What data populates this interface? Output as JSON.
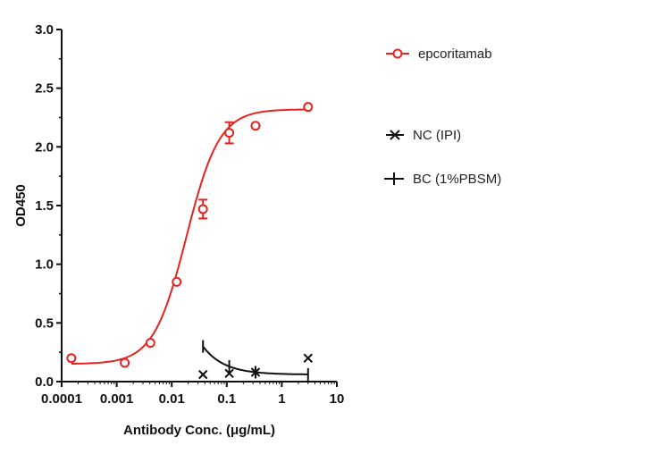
{
  "chart_data": {
    "type": "scatter",
    "xlabel": "Antibody Conc. (μg/mL)",
    "ylabel": "OD450",
    "xscale": "log",
    "xlim": [
      0.0001,
      10
    ],
    "ylim": [
      0,
      3
    ],
    "xticks": [
      "0.0001",
      "0.001",
      "0.01",
      "0.1",
      "1",
      "10"
    ],
    "yticks": [
      "0.0",
      "0.5",
      "1.0",
      "1.5",
      "2.0",
      "2.5",
      "3.0"
    ],
    "grid": false,
    "legend_position": "right",
    "series": [
      {
        "name": "epcoritamab",
        "color": "#e8231f",
        "marker": "open-circle",
        "x": [
          0.00015,
          0.0014,
          0.0041,
          0.0123,
          0.037,
          0.111,
          0.333,
          3.0
        ],
        "y": [
          0.2,
          0.16,
          0.33,
          0.85,
          1.47,
          2.12,
          2.18,
          2.34
        ],
        "y_error": [
          0,
          0,
          0,
          0,
          0.08,
          0.09,
          0,
          0
        ],
        "fit": {
          "bottom": 0.15,
          "top": 2.32,
          "ec50": 0.0185,
          "hill": 1.45
        }
      },
      {
        "name": "NC (IPI)",
        "color": "#111111",
        "marker": "x",
        "x": [
          0.037,
          0.111,
          0.333,
          3.0
        ],
        "y": [
          0.06,
          0.07,
          0.08,
          0.2
        ]
      },
      {
        "name": "BC (1%PBSM)",
        "color": "#111111",
        "marker": "plus",
        "x": [
          0.037,
          0.111,
          0.333,
          3.0
        ],
        "y": [
          0.3,
          0.1,
          0.07,
          0.06
        ],
        "fit": {
          "from": 0.037,
          "to": 3.0
        }
      }
    ]
  }
}
